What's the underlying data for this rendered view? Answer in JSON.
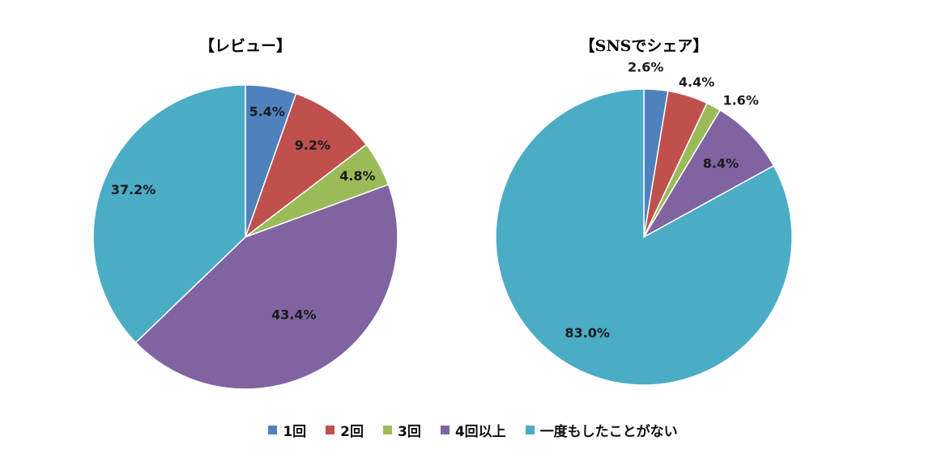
{
  "colors": {
    "1回": "#4F81BD",
    "2回": "#C0504D",
    "3回": "#9BBB59",
    "4回以上": "#8064A2",
    "一度もしたことがない": "#4BACC6"
  },
  "chart_data": [
    {
      "type": "pie",
      "title": "【レビュー】",
      "categories": [
        "1回",
        "2回",
        "3回",
        "4回以上",
        "一度もしたことがない"
      ],
      "values": [
        5.4,
        9.2,
        4.8,
        43.4,
        37.2
      ],
      "labels": [
        "5.4%",
        "9.2%",
        "4.8%",
        "43.4%",
        "37.2%"
      ],
      "legend_position": "bottom"
    },
    {
      "type": "pie",
      "title": "【SNSでシェア】",
      "categories": [
        "1回",
        "2回",
        "3回",
        "4回以上",
        "一度もしたことがない"
      ],
      "values": [
        2.6,
        4.4,
        1.6,
        8.4,
        83.0
      ],
      "labels": [
        "2.6%",
        "4.4%",
        "1.6%",
        "8.4%",
        "83.0%"
      ],
      "legend_position": "bottom"
    }
  ],
  "legend": [
    "1回",
    "2回",
    "3回",
    "4回以上",
    "一度もしたことがない"
  ]
}
